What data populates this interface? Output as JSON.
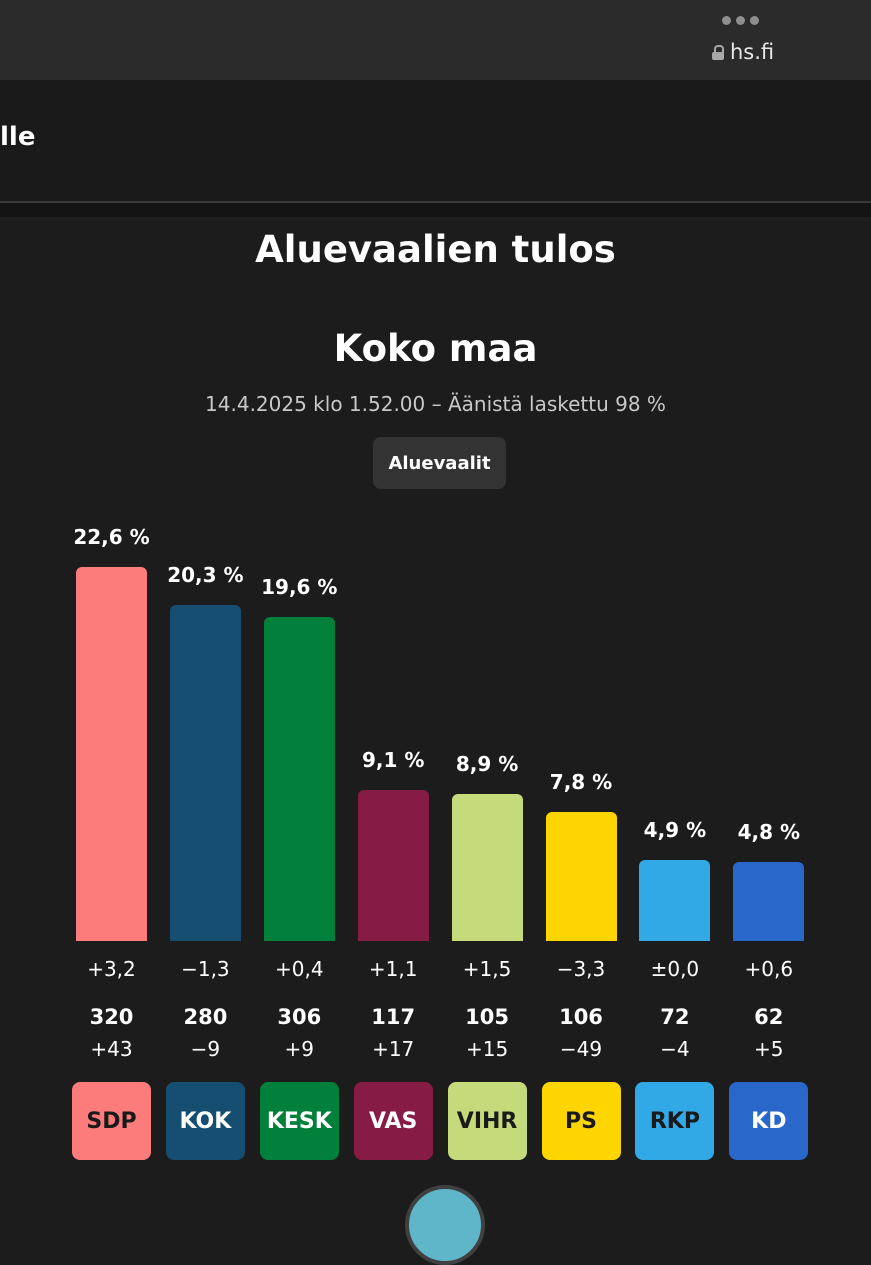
{
  "browser": {
    "url": "hs.fi",
    "more_icon": "more-dots-icon",
    "lock_icon": "lock-icon"
  },
  "header": {
    "fragment": "lle"
  },
  "page": {
    "title": "Aluevaalien tulos",
    "region": "Koko maa",
    "meta": "14.4.2025 klo 1.52.00 – Äänistä laskettu 98 %",
    "election_button": "Aluevaalit"
  },
  "chart_data": {
    "type": "bar",
    "title": "Koko maa",
    "categories": [
      "SDP",
      "KOK",
      "KESK",
      "VAS",
      "VIHR",
      "PS",
      "RKP",
      "KD"
    ],
    "values": [
      22.6,
      20.3,
      19.6,
      9.1,
      8.9,
      7.8,
      4.9,
      4.8
    ],
    "value_labels": [
      "22,6 %",
      "20,3 %",
      "19,6 %",
      "9,1 %",
      "8,9 %",
      "7,8 %",
      "4,9 %",
      "4,8 %"
    ],
    "change_labels": [
      "+3,2",
      "−1,3",
      "+0,4",
      "+1,1",
      "+1,5",
      "−3,3",
      "±0,0",
      "+0,6"
    ],
    "seats": [
      "320",
      "280",
      "306",
      "117",
      "105",
      "106",
      "72",
      "62"
    ],
    "seat_changes": [
      "+43",
      "−9",
      "+9",
      "+17",
      "+15",
      "−49",
      "−4",
      "+5"
    ],
    "colors": [
      "#fc7c7c",
      "#164e72",
      "#00803a",
      "#861c45",
      "#c5da7a",
      "#ffd500",
      "#31a9e6",
      "#2a67cb"
    ],
    "badge_text_colors": [
      "#1a1a1a",
      "#ffffff",
      "#ffffff",
      "#ffffff",
      "#1a1a1a",
      "#1a1a1a",
      "#1a1a1a",
      "#ffffff"
    ],
    "ylim": [
      0,
      22.6
    ],
    "xlabel": "",
    "ylabel": ""
  }
}
